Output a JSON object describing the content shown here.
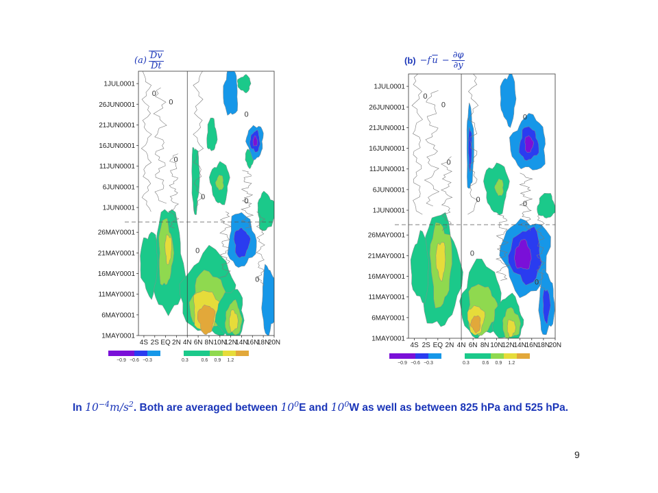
{
  "colors": {
    "purple": "#7a10d8",
    "indigo": "#2a3cf0",
    "blue": "#1697e8",
    "teal": "#1bc98a",
    "green": "#8fd94f",
    "yellow": "#e6dc3a",
    "orange": "#e2a83a",
    "contour": "#7a7a7a",
    "title_blue": "#1a35b8"
  },
  "caption": {
    "prefix": "In",
    "unit": "10",
    "unit_exp": "−4",
    "unit_tail": "m/s",
    "unit_tail_exp": "2",
    "text1": ". Both are averaged between",
    "e_deg": "10",
    "e_sup": "0",
    "text2": "E and",
    "w_deg": "10",
    "w_sup": "0",
    "text3": "W as well as between 825 hPa and 525 hPa."
  },
  "page_number": "9",
  "chart_data": [
    {
      "type": "heatmap",
      "panel": "a",
      "title_label": "(a)",
      "title_num": "Dv",
      "title_den": "Dt",
      "x_tick_labels": [
        "4S",
        "2S",
        "EQ",
        "2N",
        "4N",
        "6N",
        "8N",
        "10N",
        "12N",
        "14N",
        "16N",
        "18N",
        "20N"
      ],
      "xlim": [
        -5,
        20
      ],
      "y_tick_labels": [
        "1MAY0001",
        "6MAY0001",
        "11MAY0001",
        "16MAY0001",
        "21MAY0001",
        "26MAY0001",
        "1JUN0001",
        "6JUN0001",
        "11JUN0001",
        "16JUN0001",
        "21JUN0001",
        "26JUN0001",
        "1JUL0001"
      ],
      "y_tick_days": [
        0,
        5,
        10,
        15,
        20,
        25,
        31,
        36,
        41,
        46,
        51,
        56,
        61
      ],
      "ylim_days": [
        0,
        64
      ],
      "colorbar_ticks": [
        "−0.9",
        "−0.6",
        "−0.3",
        "0.3",
        "0.6",
        "0.9",
        "1.2"
      ],
      "vertical_line_lat": 4,
      "horizontal_dashed_day": 27.5,
      "contour_label": "0",
      "contour_levels": [
        "-1.2",
        "-0.9",
        "-0.6",
        "-0.3",
        "0",
        "0.3",
        "0.6",
        "0.9",
        "1.2"
      ],
      "features": [
        {
          "class": "0.3",
          "lat": 0.5,
          "day": 17.5,
          "dlat": 2.8,
          "dday": 12.5
        },
        {
          "class": "0.6",
          "lat": 0.0,
          "day": 20.0,
          "dlat": 1.3,
          "dday": 8.0
        },
        {
          "class": "0.9",
          "lat": 0.5,
          "day": 21.0,
          "dlat": 0.6,
          "dday": 3.5
        },
        {
          "class": "0.3",
          "lat": -3.0,
          "day": 17.5,
          "dlat": 1.6,
          "dday": 7.5
        },
        {
          "class": "0.3",
          "lat": 8.0,
          "day": 10.0,
          "dlat": 5.0,
          "dday": 10.0
        },
        {
          "class": "0.6",
          "lat": 8.0,
          "day": 8.0,
          "dlat": 3.5,
          "dday": 7.0
        },
        {
          "class": "0.9",
          "lat": 7.5,
          "day": 6.0,
          "dlat": 2.5,
          "dday": 5.0
        },
        {
          "class": "1.2",
          "lat": 7.5,
          "day": 4.0,
          "dlat": 1.5,
          "dday": 3.5
        },
        {
          "class": "0.3",
          "lat": 12.0,
          "day": 5.0,
          "dlat": 2.5,
          "dday": 6.0
        },
        {
          "class": "0.6",
          "lat": 12.5,
          "day": 4.0,
          "dlat": 1.5,
          "dday": 4.0
        },
        {
          "class": "0.9",
          "lat": 12.5,
          "day": 3.5,
          "dlat": 0.8,
          "dday": 2.5
        },
        {
          "class": "0.3",
          "lat": 5.5,
          "day": 38.0,
          "dlat": 0.7,
          "dday": 8.0
        },
        {
          "class": "0.3",
          "lat": 10.0,
          "day": 37.0,
          "dlat": 1.7,
          "dday": 5.0
        },
        {
          "class": "0.6",
          "lat": 10.0,
          "day": 37.0,
          "dlat": 0.7,
          "dday": 1.8
        },
        {
          "class": "0.3",
          "lat": 8.5,
          "day": 48.5,
          "dlat": 0.9,
          "dday": 4.0
        },
        {
          "class": "0.3",
          "lat": 18.5,
          "day": 30.0,
          "dlat": 1.6,
          "dday": 4.5
        },
        {
          "class": "0.3",
          "lat": 15.5,
          "day": 43.0,
          "dlat": 0.8,
          "dday": 2.2
        },
        {
          "class": "0.3",
          "lat": 14.5,
          "day": 61.0,
          "dlat": 1.2,
          "dday": 2.0
        },
        {
          "class": "-0.3",
          "lat": 12.0,
          "day": 59.0,
          "dlat": 1.3,
          "dday": 6.0
        },
        {
          "class": "-0.3",
          "lat": 14.0,
          "day": 23.0,
          "dlat": 2.5,
          "dday": 6.5
        },
        {
          "class": "-0.6",
          "lat": 14.0,
          "day": 22.5,
          "dlat": 1.4,
          "dday": 3.5
        },
        {
          "class": "-0.3",
          "lat": 16.5,
          "day": 47.0,
          "dlat": 1.5,
          "dday": 4.0
        },
        {
          "class": "-0.6",
          "lat": 16.5,
          "day": 47.0,
          "dlat": 0.9,
          "dday": 2.5
        },
        {
          "class": "-0.9",
          "lat": 16.5,
          "day": 47.0,
          "dlat": 0.4,
          "dday": 1.2
        },
        {
          "class": "-0.3",
          "lat": 19.0,
          "day": 8.5,
          "dlat": 1.3,
          "dday": 8.0
        }
      ]
    },
    {
      "type": "heatmap",
      "panel": "b",
      "title_label": "(b)",
      "title_lhs": "−f",
      "title_ubar": "u",
      "title_minus": "−",
      "title_num": "∂φ",
      "title_den": "∂y",
      "x_tick_labels": [
        "4S",
        "2S",
        "EQ",
        "2N",
        "4N",
        "6N",
        "8N",
        "10N",
        "12N",
        "14N",
        "16N",
        "18N",
        "20N"
      ],
      "xlim": [
        -5,
        20
      ],
      "y_tick_labels": [
        "1MAY0001",
        "6MAY0001",
        "11MAY0001",
        "16MAY0001",
        "21MAY0001",
        "26MAY0001",
        "1JUN0001",
        "6JUN0001",
        "11JUN0001",
        "16JUN0001",
        "21JUN0001",
        "26JUN0001",
        "1JUL0001"
      ],
      "y_tick_days": [
        0,
        5,
        10,
        15,
        20,
        25,
        31,
        36,
        41,
        46,
        51,
        56,
        61
      ],
      "ylim_days": [
        0,
        64
      ],
      "colorbar_ticks": [
        "−0.9",
        "−0.6",
        "−0.3",
        "0.3",
        "0.6",
        "0.9",
        "1.2"
      ],
      "vertical_line_lat": 4,
      "horizontal_dashed_day": 27.5,
      "contour_label": "0",
      "contour_levels": [
        "-1.2",
        "-0.9",
        "-0.6",
        "-0.3",
        "0",
        "0.3",
        "0.6",
        "0.9",
        "1.2"
      ],
      "features": [
        {
          "class": "0.3",
          "lat": 0.5,
          "day": 16.0,
          "dlat": 3.2,
          "dday": 13.5
        },
        {
          "class": "0.6",
          "lat": 0.5,
          "day": 18.0,
          "dlat": 1.8,
          "dday": 10.0
        },
        {
          "class": "0.9",
          "lat": 0.5,
          "day": 19.0,
          "dlat": 0.8,
          "dday": 4.5
        },
        {
          "class": "0.3",
          "lat": -3.0,
          "day": 17.0,
          "dlat": 1.5,
          "dday": 8.0
        },
        {
          "class": "0.3",
          "lat": 7.5,
          "day": 9.0,
          "dlat": 3.5,
          "dday": 9.0
        },
        {
          "class": "0.6",
          "lat": 7.5,
          "day": 7.0,
          "dlat": 2.5,
          "dday": 6.0
        },
        {
          "class": "0.9",
          "lat": 6.5,
          "day": 4.5,
          "dlat": 1.4,
          "dday": 3.5
        },
        {
          "class": "1.2",
          "lat": 6.5,
          "day": 3.5,
          "dlat": 0.8,
          "dday": 2.0
        },
        {
          "class": "0.3",
          "lat": 12.0,
          "day": 4.5,
          "dlat": 2.5,
          "dday": 5.5
        },
        {
          "class": "0.6",
          "lat": 12.5,
          "day": 3.5,
          "dlat": 1.5,
          "dday": 3.5
        },
        {
          "class": "0.9",
          "lat": 12.5,
          "day": 2.5,
          "dlat": 0.7,
          "dday": 2.0
        },
        {
          "class": "0.3",
          "lat": 10.0,
          "day": 36.5,
          "dlat": 2.0,
          "dday": 6.0
        },
        {
          "class": "0.6",
          "lat": 10.5,
          "day": 36.5,
          "dlat": 0.7,
          "dday": 2.0
        },
        {
          "class": "0.3",
          "lat": 18.5,
          "day": 32.0,
          "dlat": 1.5,
          "dday": 3.0
        },
        {
          "class": "-0.3",
          "lat": 5.5,
          "day": 46.0,
          "dlat": 0.6,
          "dday": 10.0
        },
        {
          "class": "-0.6",
          "lat": 5.5,
          "day": 46.0,
          "dlat": 0.3,
          "dday": 5.0
        },
        {
          "class": "-0.3",
          "lat": 12.0,
          "day": 58.0,
          "dlat": 1.3,
          "dday": 6.0
        },
        {
          "class": "-0.3",
          "lat": 15.5,
          "day": 47.0,
          "dlat": 3.0,
          "dday": 6.5
        },
        {
          "class": "-0.6",
          "lat": 15.5,
          "day": 47.0,
          "dlat": 1.6,
          "dday": 4.0
        },
        {
          "class": "-0.9",
          "lat": 15.5,
          "day": 47.0,
          "dlat": 0.7,
          "dday": 2.0
        },
        {
          "class": "-0.3",
          "lat": 15.0,
          "day": 20.0,
          "dlat": 4.0,
          "dday": 9.0
        },
        {
          "class": "-0.6",
          "lat": 15.0,
          "day": 20.0,
          "dlat": 2.7,
          "dday": 6.5
        },
        {
          "class": "-0.9",
          "lat": 14.5,
          "day": 20.0,
          "dlat": 1.4,
          "dday": 3.5
        },
        {
          "class": "-0.3",
          "lat": 18.5,
          "day": 8.5,
          "dlat": 1.3,
          "dday": 7.5
        },
        {
          "class": "-0.6",
          "lat": 18.5,
          "day": 8.0,
          "dlat": 0.6,
          "dday": 4.0
        }
      ]
    }
  ]
}
